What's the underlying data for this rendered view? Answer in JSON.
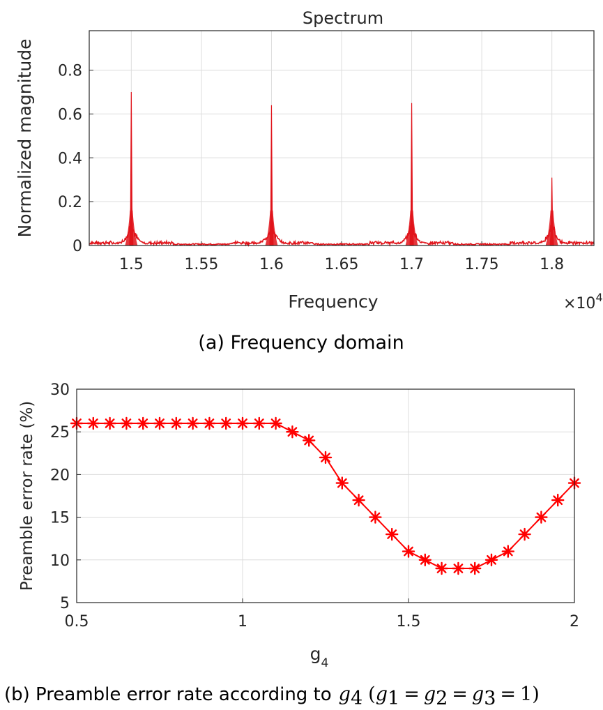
{
  "chart_data": [
    {
      "type": "line",
      "title": "Spectrum",
      "xlabel": "Frequency",
      "ylabel": "Normalized magnitude",
      "x_exponent_label": "×10",
      "x_exponent_power": "4",
      "xlim": [
        1.47,
        1.83
      ],
      "ylim": [
        0,
        0.98
      ],
      "xticks": [
        "1.5",
        "1.55",
        "1.6",
        "1.65",
        "1.7",
        "1.75",
        "1.8"
      ],
      "yticks": [
        "0",
        "0.2",
        "0.4",
        "0.6",
        "0.8"
      ],
      "grid": true,
      "color": "#e0141b",
      "peaks": [
        {
          "x": 1.5,
          "y": 0.7
        },
        {
          "x": 1.6,
          "y": 0.64
        },
        {
          "x": 1.7,
          "y": 0.65
        },
        {
          "x": 1.8,
          "y": 0.31
        }
      ],
      "caption": "(a) Frequency domain"
    },
    {
      "type": "line",
      "xlabel": "g",
      "xlabel_sub": "4",
      "ylabel": "Preamble error rate  (%)",
      "xlim": [
        0.5,
        2
      ],
      "ylim": [
        5,
        30
      ],
      "xticks": [
        "0.5",
        "1",
        "1.5",
        "2"
      ],
      "yticks": [
        "5",
        "10",
        "15",
        "20",
        "25",
        "30"
      ],
      "grid": true,
      "marker": "asterisk",
      "color": "#ff0000",
      "x": [
        0.5,
        0.55,
        0.6,
        0.65,
        0.7,
        0.75,
        0.8,
        0.85,
        0.9,
        0.95,
        1.0,
        1.05,
        1.1,
        1.15,
        1.2,
        1.25,
        1.3,
        1.35,
        1.4,
        1.45,
        1.5,
        1.55,
        1.6,
        1.65,
        1.7,
        1.75,
        1.8,
        1.85,
        1.9,
        1.95,
        2.0
      ],
      "y": [
        26,
        26,
        26,
        26,
        26,
        26,
        26,
        26,
        26,
        26,
        26,
        26,
        26,
        25,
        24,
        22,
        19,
        17,
        15,
        13,
        11,
        10,
        9,
        9,
        9,
        10,
        11,
        13,
        15,
        17,
        19
      ],
      "caption": {
        "prefix": "(b) Preamble error rate according to",
        "var": "g",
        "var_sub": "4",
        "cond_open": "(",
        "cond_terms": [
          {
            "var": "g",
            "sub": "1",
            "op": "="
          },
          {
            "var": "g",
            "sub": "2",
            "op": "="
          },
          {
            "var": "g",
            "sub": "3",
            "op": "="
          }
        ],
        "cond_value": "1",
        "cond_close": ")"
      }
    }
  ]
}
